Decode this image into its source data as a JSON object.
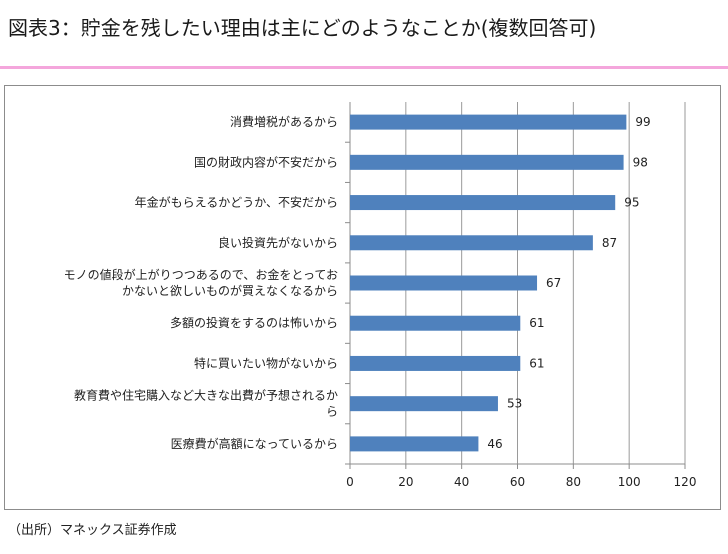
{
  "page": {
    "title": "図表3：貯金を残したい理由は主にどのようなことか(複数回答可)",
    "source": "（出所）マネックス証券作成"
  },
  "colors": {
    "bar": "#4f81bd",
    "title_rule": "#f4a6dc"
  },
  "chart_data": {
    "type": "bar",
    "orientation": "horizontal",
    "categories": [
      [
        "消費増税があるから"
      ],
      [
        "国の財政内容が不安だから"
      ],
      [
        "年金がもらえるかどうか、不安だから"
      ],
      [
        "良い投資先がないから"
      ],
      [
        "モノの値段が上がりつつあるので、お金をとってお",
        "かないと欲しいものが買えなくなるから"
      ],
      [
        "多額の投資をするのは怖いから"
      ],
      [
        "特に買いたい物がないから"
      ],
      [
        "教育費や住宅購入など大きな出費が予想されるか",
        "ら"
      ],
      [
        "医療費が高額になっているから"
      ]
    ],
    "values": [
      99,
      98,
      95,
      87,
      67,
      61,
      61,
      53,
      46
    ],
    "data_labels": [
      "99",
      "98",
      "95",
      "87",
      "67",
      "61",
      "61",
      "53",
      "46"
    ],
    "xlim": [
      0,
      120
    ],
    "xticks": [
      0,
      20,
      40,
      60,
      80,
      100,
      120
    ],
    "xtick_labels": [
      "0",
      "20",
      "40",
      "60",
      "80",
      "100",
      "120"
    ],
    "grid": true,
    "legend": "none"
  }
}
